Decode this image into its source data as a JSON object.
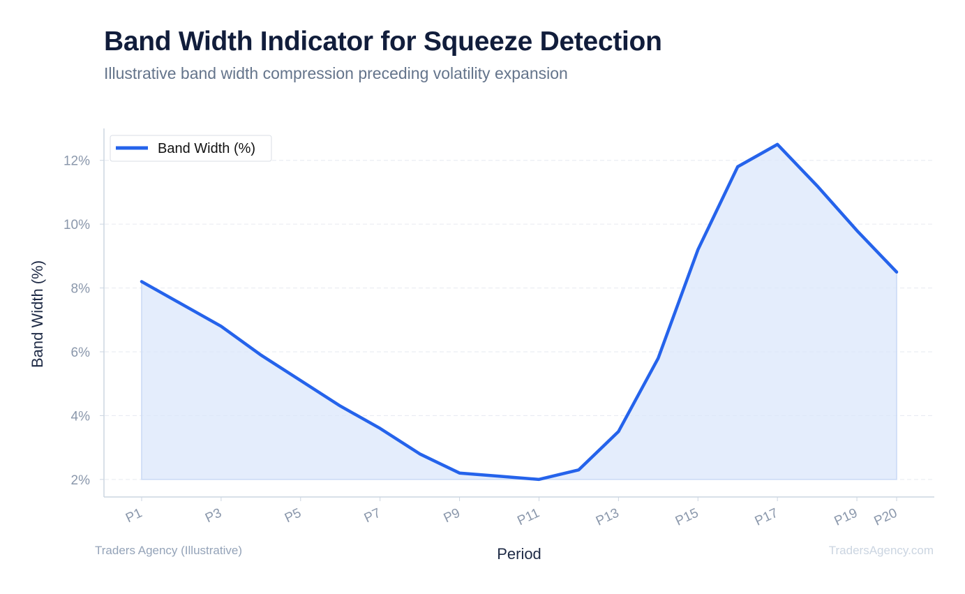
{
  "header": {
    "title": "Band Width Indicator for Squeeze Detection",
    "subtitle": "Illustrative band width compression preceding volatility expansion"
  },
  "footer": {
    "source": "Traders Agency (Illustrative)",
    "watermark": "TradersAgency.com"
  },
  "chart_data": {
    "type": "area",
    "title": "Band Width Indicator for Squeeze Detection",
    "subtitle": "Illustrative band width compression preceding volatility expansion",
    "xlabel": "Period",
    "ylabel": "Band Width (%)",
    "categories": [
      "P1",
      "P2",
      "P3",
      "P4",
      "P5",
      "P6",
      "P7",
      "P8",
      "P9",
      "P10",
      "P11",
      "P12",
      "P13",
      "P14",
      "P15",
      "P16",
      "P17",
      "P18",
      "P19",
      "P20"
    ],
    "x_tick_labels": [
      "P1",
      "P3",
      "P5",
      "P7",
      "P9",
      "P11",
      "P13",
      "P15",
      "P17",
      "P19",
      "P20"
    ],
    "y_ticks": [
      2,
      4,
      6,
      8,
      10,
      12
    ],
    "y_tick_suffix": "%",
    "ylim": [
      1.45,
      13.0
    ],
    "grid": "horizontal dashed",
    "legend_position": "top-left",
    "series": [
      {
        "name": "Band Width (%)",
        "color": "#2563eb",
        "fill": "#dbe7fb",
        "values": [
          8.2,
          7.5,
          6.8,
          5.9,
          5.1,
          4.3,
          3.6,
          2.8,
          2.2,
          2.1,
          2.0,
          2.3,
          3.5,
          5.8,
          9.2,
          11.8,
          12.5,
          11.2,
          9.8,
          8.5
        ]
      }
    ]
  }
}
